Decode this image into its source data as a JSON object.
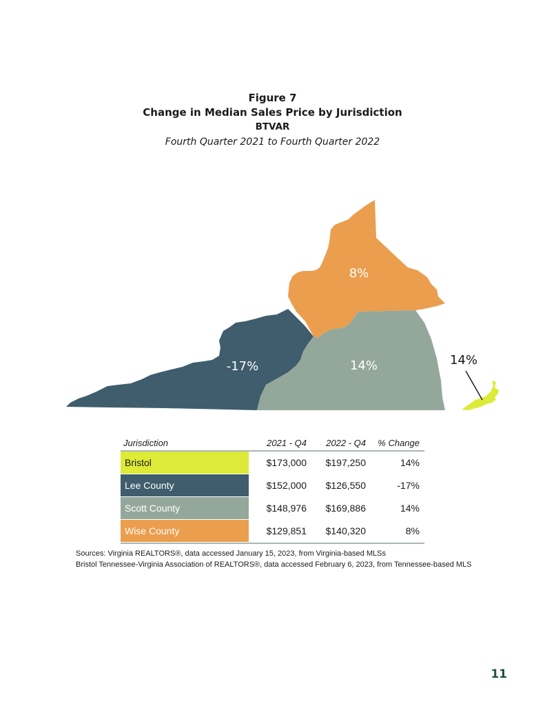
{
  "figure": {
    "number": "Figure 7",
    "title": "Change in Median Sales Price by Jurisdiction",
    "organization": "BTVAR",
    "period": "Fourth Quarter 2021 to Fourth Quarter 2022"
  },
  "map": {
    "regions": [
      {
        "name": "Wise County",
        "label": "8%",
        "color": "#EB9E4E"
      },
      {
        "name": "Lee County",
        "label": "-17%",
        "color": "#3F5D6C"
      },
      {
        "name": "Scott County",
        "label": "14%",
        "color": "#93A89B"
      },
      {
        "name": "Bristol",
        "label": "14%",
        "color": "#DDEA38"
      }
    ]
  },
  "table": {
    "headers": [
      "Jurisdiction",
      "2021 - Q4",
      "2022 - Q4",
      "% Change"
    ],
    "rows": [
      {
        "jurisdiction": "Bristol",
        "q4_2021": "$173,000",
        "q4_2022": "$197,250",
        "change": "14%",
        "color": "#DDEA38",
        "text_color": "#1a1a1a"
      },
      {
        "jurisdiction": "Lee County",
        "q4_2021": "$152,000",
        "q4_2022": "$126,550",
        "change": "-17%",
        "color": "#3F5D6C",
        "text_color": "#ffffff"
      },
      {
        "jurisdiction": "Scott County",
        "q4_2021": "$148,976",
        "q4_2022": "$169,886",
        "change": "14%",
        "color": "#93A89B",
        "text_color": "#ffffff"
      },
      {
        "jurisdiction": "Wise County",
        "q4_2021": "$129,851",
        "q4_2022": "$140,320",
        "change": "8%",
        "color": "#EB9E4E",
        "text_color": "#ffffff"
      }
    ]
  },
  "sources": [
    "Sources: Virginia REALTORS®, data accessed January 15, 2023, from Virginia-based MLSs",
    "Bristol Tennessee-Virginia Association of REALTORS®, data accessed February 6, 2023, from Tennessee-based MLS"
  ],
  "page_number": "11"
}
